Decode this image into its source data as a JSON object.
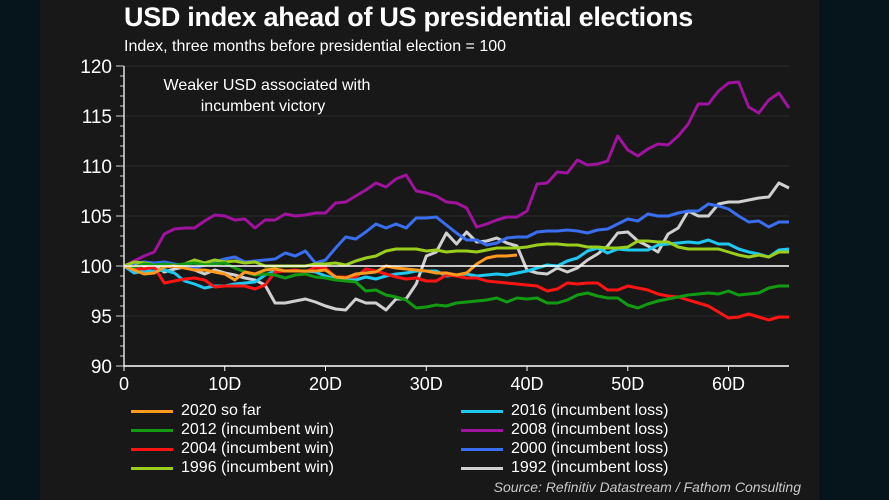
{
  "title": "USD index ahead of US presidential elections",
  "subtitle": "Index, three months before presidential election = 100",
  "annotation": [
    "Weaker USD associated with",
    "incumbent victory"
  ],
  "source": "Source: Refinitiv Datastream / Fathom Consulting",
  "chart_data": {
    "type": "line",
    "title": "USD index ahead of US presidential elections",
    "subtitle": "Index, three months before presidential election = 100",
    "xlabel": "",
    "ylabel": "",
    "xlim": [
      0,
      66
    ],
    "ylim": [
      90,
      120
    ],
    "x_ticks": [
      0,
      10,
      20,
      30,
      40,
      50,
      60
    ],
    "x_tick_labels": [
      "0",
      "10D",
      "20D",
      "30D",
      "40D",
      "50D",
      "60D"
    ],
    "y_ticks": [
      90,
      95,
      100,
      105,
      110,
      115,
      120
    ],
    "y_tick_labels": [
      "90",
      "95",
      "100",
      "105",
      "110",
      "115",
      "120"
    ],
    "reference_line": 100,
    "grid": "horizontal",
    "legend_position": "bottom",
    "series": [
      {
        "name": "2020 so far",
        "color": "#ff9a1f",
        "values": [
          100,
          99.6,
          99.2,
          99.3,
          99.9,
          100,
          99.8,
          99.6,
          99.6,
          99.4,
          99.2,
          98.6,
          99.4,
          99.2,
          99.6,
          99.7,
          99.5,
          99.5,
          99.5,
          99.5,
          99.6,
          98.9,
          98.8,
          99.2,
          99.3,
          99.4,
          100,
          99.8,
          99.7,
          99.6,
          99.5,
          99.3,
          99.3,
          99.1,
          99.3,
          100.2,
          100.8,
          101,
          101,
          101.1
        ]
      },
      {
        "name": "2012 (incumbent win)",
        "color": "#139a13",
        "values": [
          100,
          99.9,
          100.2,
          100.1,
          100.2,
          100.1,
          100.2,
          100.3,
          100.1,
          100.2,
          100.3,
          99.8,
          99.4,
          99.1,
          99.2,
          99.1,
          98.8,
          99.1,
          99.2,
          98.9,
          98.8,
          98.6,
          98.5,
          98.4,
          97.5,
          97.6,
          97.1,
          96.9,
          96.6,
          95.8,
          95.9,
          96.1,
          96.0,
          96.3,
          96.4,
          96.5,
          96.6,
          96.8,
          96.4,
          96.8,
          96.7,
          96.8,
          96.3,
          96.3,
          96.6,
          97.1,
          97.3,
          97.0,
          96.8,
          96.8,
          96.1,
          95.8,
          96.2,
          96.5,
          96.7,
          96.9,
          97.1,
          97.2,
          97.3,
          97.2,
          97.5,
          97.1,
          97.2,
          97.3,
          97.8,
          98.0,
          98.0
        ]
      },
      {
        "name": "2004 (incumbent win)",
        "color": "#ff1414",
        "values": [
          100,
          99.8,
          99.7,
          99.9,
          98.3,
          98.5,
          98.7,
          98.8,
          98.6,
          97.9,
          98.0,
          98.0,
          98.0,
          97.7,
          98.1,
          99.4,
          99.5,
          99.6,
          99.4,
          99.9,
          99.8,
          98.9,
          98.9,
          98.9,
          99.7,
          99.5,
          99.2,
          98.9,
          98.7,
          98.8,
          98.5,
          98.5,
          99.1,
          99.0,
          98.8,
          98.8,
          98.5,
          98.4,
          98.3,
          98.2,
          98.1,
          98.0,
          97.5,
          97.7,
          98.3,
          98.2,
          98.3,
          98.3,
          97.6,
          97.6,
          98.0,
          97.8,
          97.6,
          97.2,
          97.0,
          96.9,
          96.6,
          96.3,
          96.0,
          95.4,
          94.8,
          94.9,
          95.2,
          94.9,
          94.6,
          94.9,
          94.9
        ]
      },
      {
        "name": "1996 (incumbent win)",
        "color": "#9acd1c",
        "values": [
          100,
          100.4,
          100.3,
          100.1,
          100.0,
          100.0,
          100.2,
          100.6,
          100.3,
          100.6,
          100.4,
          100.5,
          100.3,
          100.4,
          100.0,
          100.0,
          100.0,
          100.0,
          100.0,
          100.2,
          100.2,
          100.3,
          100.1,
          100.5,
          100.8,
          101.0,
          101.5,
          101.7,
          101.7,
          101.7,
          101.5,
          101.6,
          101.4,
          101.5,
          101.5,
          101.4,
          101.6,
          101.8,
          101.8,
          101.8,
          101.9,
          102.1,
          102.2,
          102.2,
          102.1,
          102.1,
          101.9,
          101.9,
          101.8,
          101.8,
          101.9,
          102.5,
          102.5,
          102.4,
          102.4,
          101.9,
          101.7,
          101.7,
          101.7,
          101.7,
          101.4,
          101.1,
          100.9,
          101.1,
          100.9,
          101.4,
          101.4
        ]
      },
      {
        "name": "2016 (incumbent loss)",
        "color": "#1ec8f0",
        "values": [
          100,
          99.3,
          99.5,
          99.5,
          99.6,
          99.3,
          98.5,
          98.2,
          97.8,
          98.0,
          98.0,
          98.2,
          98.3,
          98.4,
          99.1,
          99.5,
          99.5,
          99.5,
          99.5,
          99.4,
          99.0,
          98.7,
          98.6,
          98.6,
          98.9,
          98.7,
          99.0,
          99.2,
          99.3,
          99.5,
          99.5,
          99.5,
          99.0,
          99.1,
          99.2,
          99.0,
          99.1,
          99.2,
          99.1,
          99.3,
          99.5,
          99.8,
          100.1,
          100.0,
          100.5,
          100.8,
          101.5,
          101.8,
          101.3,
          101.7,
          101.6,
          101.6,
          101.6,
          102.1,
          102.2,
          102.3,
          102.4,
          102.3,
          102.6,
          102.2,
          102.2,
          101.7,
          101.4,
          101.2,
          100.9,
          101.6,
          101.7
        ]
      },
      {
        "name": "2008 (incumbent loss)",
        "color": "#a0139e",
        "values": [
          100,
          100.5,
          101.0,
          101.4,
          103.2,
          103.7,
          103.8,
          103.8,
          104.5,
          105.1,
          105.0,
          104.6,
          104.7,
          103.8,
          104.6,
          104.6,
          105.2,
          105.0,
          105.1,
          105.3,
          105.3,
          106.3,
          106.4,
          107.0,
          107.6,
          108.3,
          107.9,
          108.7,
          109.1,
          107.5,
          107.3,
          107.0,
          106.4,
          106.3,
          105.8,
          103.9,
          104.2,
          104.6,
          104.9,
          104.9,
          105.5,
          108.2,
          108.3,
          109.4,
          109.3,
          110.6,
          110.1,
          110.2,
          110.5,
          113.0,
          111.6,
          111.0,
          111.7,
          112.2,
          112.1,
          113.0,
          114.2,
          116.2,
          116.2,
          117.5,
          118.3,
          118.4,
          115.9,
          115.3,
          116.6,
          117.3,
          115.8
        ]
      },
      {
        "name": "2000 (incumbent loss)",
        "color": "#3a6ef0",
        "values": [
          100,
          100.3,
          100.4,
          100.3,
          100.4,
          100.2,
          100.0,
          99.8,
          100.1,
          100.4,
          100.7,
          100.9,
          100.4,
          100.5,
          100.6,
          100.7,
          101.3,
          101.0,
          101.5,
          100.3,
          100.6,
          101.8,
          102.9,
          102.7,
          103.4,
          104.2,
          103.8,
          104.2,
          103.8,
          104.8,
          104.8,
          104.9,
          104.1,
          103.3,
          102.6,
          102.6,
          102.1,
          102.3,
          102.8,
          102.9,
          102.9,
          103.4,
          103.5,
          103.5,
          103.6,
          103.5,
          103.3,
          103.6,
          103.7,
          104.2,
          104.7,
          104.5,
          105.2,
          105.0,
          105.0,
          105.3,
          105.5,
          105.5,
          106.2,
          106.0,
          105.7,
          105.0,
          104.4,
          104.5,
          103.9,
          104.4,
          104.4
        ]
      },
      {
        "name": "1992 (incumbent loss)",
        "color": "#d0d0d0",
        "values": [
          100,
          100.3,
          100.0,
          100.1,
          99.4,
          99.7,
          99.9,
          99.6,
          99.2,
          99.6,
          99.3,
          99.1,
          98.8,
          98.6,
          98.1,
          96.3,
          96.3,
          96.5,
          96.7,
          96.4,
          96.0,
          95.7,
          95.6,
          96.7,
          96.3,
          96.3,
          95.6,
          96.7,
          96.7,
          98.2,
          101.0,
          101.4,
          103.3,
          102.2,
          103.4,
          102.4,
          102.5,
          102.8,
          102.3,
          102.0,
          99.6,
          99.3,
          99.2,
          99.8,
          99.4,
          99.8,
          100.6,
          101.2,
          102.0,
          103.3,
          103.4,
          102.5,
          102.0,
          101.4,
          103.2,
          103.8,
          105.5,
          105.0,
          105.0,
          106.2,
          106.4,
          106.4,
          106.6,
          106.8,
          106.9,
          108.3,
          107.8
        ]
      }
    ]
  },
  "legend": [
    {
      "label": "2020 so far",
      "color": "#ff9a1f"
    },
    {
      "label": "2012 (incumbent win)",
      "color": "#139a13"
    },
    {
      "label": "2004 (incumbent win)",
      "color": "#ff1414"
    },
    {
      "label": "1996 (incumbent win)",
      "color": "#9acd1c"
    },
    {
      "label": "2016 (incumbent loss)",
      "color": "#1ec8f0"
    },
    {
      "label": "2008 (incumbent loss)",
      "color": "#a0139e"
    },
    {
      "label": "2000 (incumbent loss)",
      "color": "#3a6ef0"
    },
    {
      "label": "1992 (incumbent loss)",
      "color": "#d0d0d0"
    }
  ]
}
